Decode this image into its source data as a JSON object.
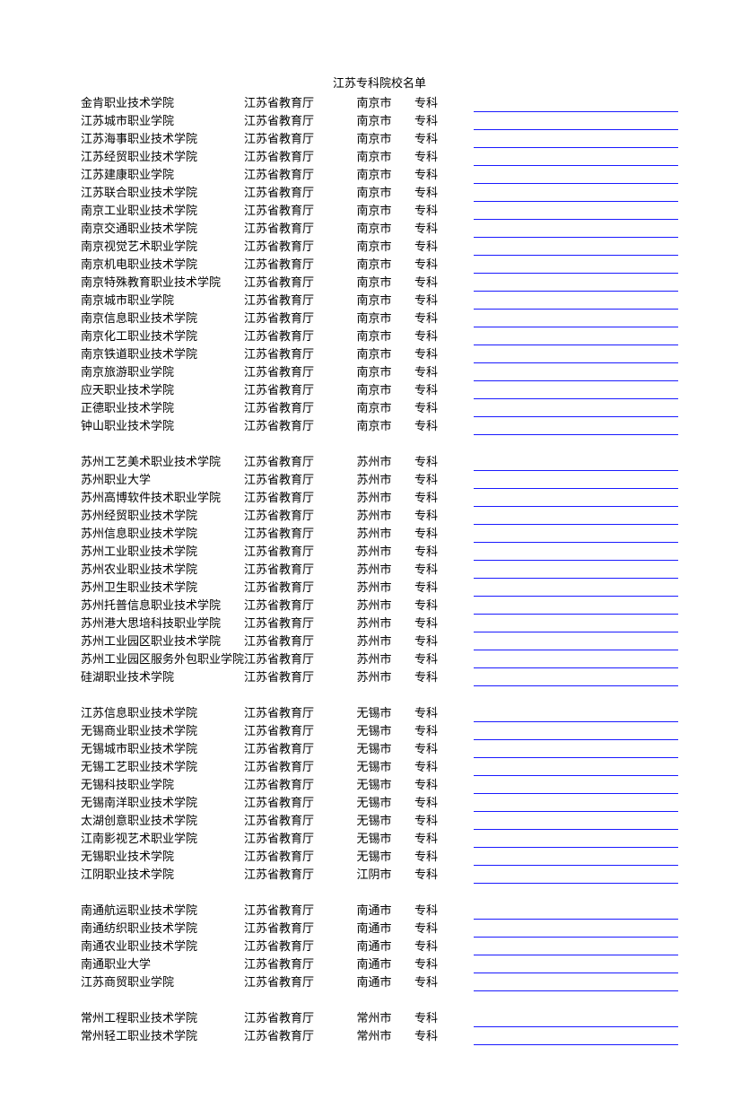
{
  "title": "江苏专科院校名单",
  "columns": {
    "dept_default": "江苏省教育厅",
    "level_default": "专科"
  },
  "colors": {
    "text": "#000000",
    "link_underline": "#1a1aff",
    "background": "#ffffff"
  },
  "typography": {
    "font_family": "SimSun",
    "font_size_pt": 10
  },
  "groups": [
    {
      "city": "南京市",
      "rows": [
        {
          "name": "金肯职业技术学院"
        },
        {
          "name": "江苏城市职业学院"
        },
        {
          "name": "江苏海事职业技术学院"
        },
        {
          "name": "江苏经贸职业技术学院"
        },
        {
          "name": "江苏建康职业学院"
        },
        {
          "name": "江苏联合职业技术学院"
        },
        {
          "name": "南京工业职业技术学院"
        },
        {
          "name": "南京交通职业技术学院"
        },
        {
          "name": "南京视觉艺术职业学院"
        },
        {
          "name": "南京机电职业技术学院"
        },
        {
          "name": "南京特殊教育职业技术学院"
        },
        {
          "name": "南京城市职业学院"
        },
        {
          "name": "南京信息职业技术学院"
        },
        {
          "name": "南京化工职业技术学院"
        },
        {
          "name": "南京铁道职业技术学院"
        },
        {
          "name": "南京旅游职业学院"
        },
        {
          "name": "应天职业技术学院"
        },
        {
          "name": "正德职业技术学院"
        },
        {
          "name": "钟山职业技术学院"
        }
      ]
    },
    {
      "city": "苏州市",
      "rows": [
        {
          "name": "苏州工艺美术职业技术学院"
        },
        {
          "name": "苏州职业大学"
        },
        {
          "name": "苏州高博软件技术职业学院"
        },
        {
          "name": "苏州经贸职业技术学院"
        },
        {
          "name": "苏州信息职业技术学院"
        },
        {
          "name": "苏州工业职业技术学院"
        },
        {
          "name": "苏州农业职业技术学院"
        },
        {
          "name": "苏州卫生职业技术学院"
        },
        {
          "name": "苏州托普信息职业技术学院"
        },
        {
          "name": "苏州港大思培科技职业学院"
        },
        {
          "name": "苏州工业园区职业技术学院"
        },
        {
          "name": "苏州工业园区服务外包职业学院"
        },
        {
          "name": "硅湖职业技术学院"
        }
      ]
    },
    {
      "city": "无锡市",
      "rows": [
        {
          "name": "江苏信息职业技术学院"
        },
        {
          "name": "无锡商业职业技术学院"
        },
        {
          "name": "无锡城市职业技术学院"
        },
        {
          "name": "无锡工艺职业技术学院"
        },
        {
          "name": "无锡科技职业学院"
        },
        {
          "name": "无锡南洋职业技术学院"
        },
        {
          "name": "太湖创意职业技术学院"
        },
        {
          "name": "江南影视艺术职业学院"
        },
        {
          "name": "无锡职业技术学院"
        },
        {
          "name": "江阴职业技术学院",
          "city": "江阴市"
        }
      ]
    },
    {
      "city": "南通市",
      "rows": [
        {
          "name": "南通航运职业技术学院"
        },
        {
          "name": "南通纺织职业技术学院"
        },
        {
          "name": "南通农业职业技术学院"
        },
        {
          "name": "南通职业大学"
        },
        {
          "name": "江苏商贸职业学院"
        }
      ]
    },
    {
      "city": "常州市",
      "rows": [
        {
          "name": "常州工程职业技术学院"
        },
        {
          "name": "常州轻工职业技术学院"
        }
      ]
    }
  ]
}
